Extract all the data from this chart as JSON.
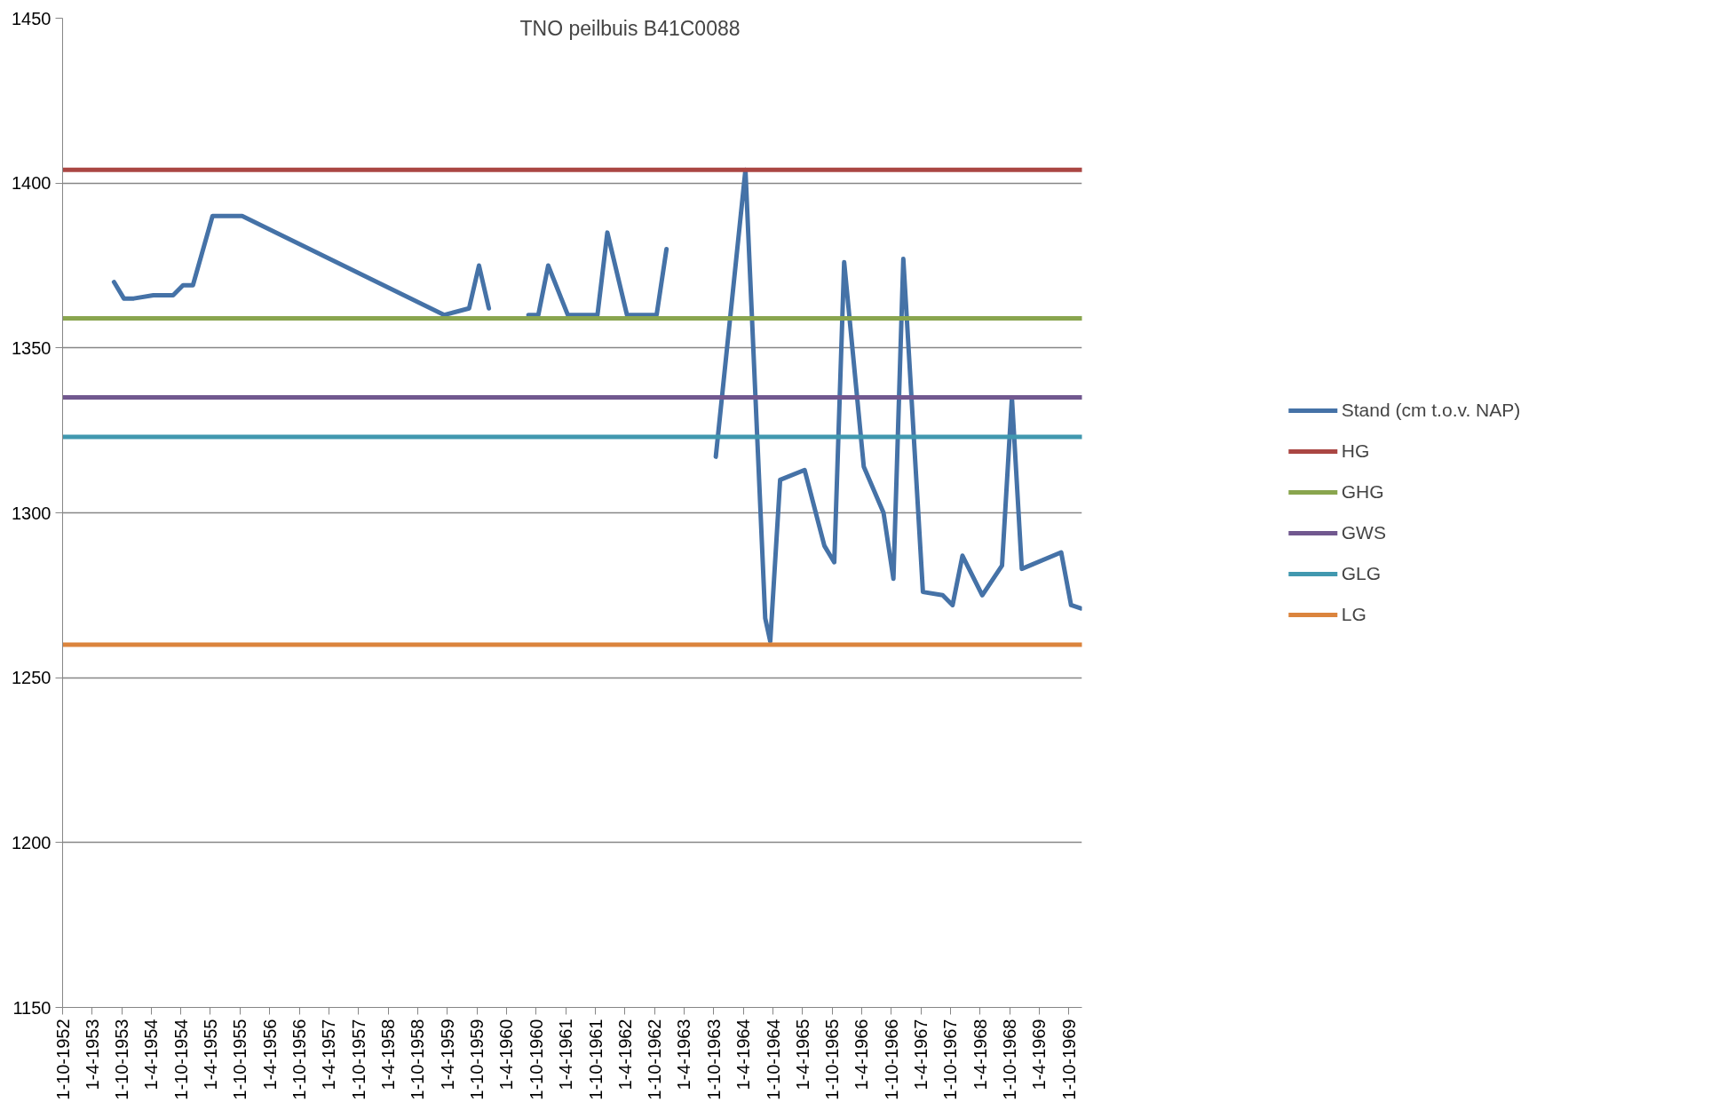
{
  "chart_data": {
    "type": "line",
    "title": "TNO peilbuis B41C0088",
    "xlim": [
      "1952-10-01",
      "1969-12-20"
    ],
    "ylim": [
      1150,
      1450
    ],
    "yticks": [
      1150,
      1200,
      1250,
      1300,
      1350,
      1400,
      1450
    ],
    "xticks": [
      {
        "value": "1952-10-01",
        "label": "1-10-1952"
      },
      {
        "value": "1953-04-01",
        "label": "1-4-1953"
      },
      {
        "value": "1953-10-01",
        "label": "1-10-1953"
      },
      {
        "value": "1954-04-01",
        "label": "1-4-1954"
      },
      {
        "value": "1954-10-01",
        "label": "1-10-1954"
      },
      {
        "value": "1955-04-01",
        "label": "1-4-1955"
      },
      {
        "value": "1955-10-01",
        "label": "1-10-1955"
      },
      {
        "value": "1956-04-01",
        "label": "1-4-1956"
      },
      {
        "value": "1956-10-01",
        "label": "1-10-1956"
      },
      {
        "value": "1957-04-01",
        "label": "1-4-1957"
      },
      {
        "value": "1957-10-01",
        "label": "1-10-1957"
      },
      {
        "value": "1958-04-01",
        "label": "1-4-1958"
      },
      {
        "value": "1958-10-01",
        "label": "1-10-1958"
      },
      {
        "value": "1959-04-01",
        "label": "1-4-1959"
      },
      {
        "value": "1959-10-01",
        "label": "1-10-1959"
      },
      {
        "value": "1960-04-01",
        "label": "1-4-1960"
      },
      {
        "value": "1960-10-01",
        "label": "1-10-1960"
      },
      {
        "value": "1961-04-01",
        "label": "1-4-1961"
      },
      {
        "value": "1961-10-01",
        "label": "1-10-1961"
      },
      {
        "value": "1962-04-01",
        "label": "1-4-1962"
      },
      {
        "value": "1962-10-01",
        "label": "1-10-1962"
      },
      {
        "value": "1963-04-01",
        "label": "1-4-1963"
      },
      {
        "value": "1963-10-01",
        "label": "1-10-1963"
      },
      {
        "value": "1964-04-01",
        "label": "1-4-1964"
      },
      {
        "value": "1964-10-01",
        "label": "1-10-1964"
      },
      {
        "value": "1965-04-01",
        "label": "1-4-1965"
      },
      {
        "value": "1965-10-01",
        "label": "1-10-1965"
      },
      {
        "value": "1966-04-01",
        "label": "1-4-1966"
      },
      {
        "value": "1966-10-01",
        "label": "1-10-1966"
      },
      {
        "value": "1967-04-01",
        "label": "1-4-1967"
      },
      {
        "value": "1967-10-01",
        "label": "1-10-1967"
      },
      {
        "value": "1968-04-01",
        "label": "1-4-1968"
      },
      {
        "value": "1968-10-01",
        "label": "1-10-1968"
      },
      {
        "value": "1969-04-01",
        "label": "1-4-1969"
      },
      {
        "value": "1969-10-01",
        "label": "1-10-1969"
      }
    ],
    "grid": "y",
    "legend": "right",
    "line_style": "solid",
    "marker": "none",
    "series": [
      {
        "name": "Stand (cm t.o.v. NAP)",
        "color": "#4572a7",
        "x": [
          "1953-08-14",
          "1953-10-14",
          "1953-12-14",
          "1954-04-14",
          "1954-08-14",
          "1954-10-14",
          "1954-12-14",
          "1955-04-14",
          "1955-10-14",
          "1959-03-14",
          "1959-08-14",
          "1959-10-14",
          "1959-12-14",
          "1960-04-14",
          "1960-08-14",
          "1960-10-14",
          "1960-12-14",
          "1961-04-14",
          "1961-10-14",
          "1961-12-14",
          "1962-04-14",
          "1962-10-14",
          "1962-12-14",
          "1963-04-14",
          "1963-10-14",
          "1964-04-14",
          "1964-08-14",
          "1964-09-14",
          "1964-11-14",
          "1965-04-14",
          "1965-08-14",
          "1965-10-14",
          "1965-12-14",
          "1966-04-14",
          "1966-08-14",
          "1966-10-14",
          "1966-12-14",
          "1967-04-14",
          "1967-08-14",
          "1967-10-14",
          "1967-12-14",
          "1968-04-14",
          "1968-08-14",
          "1968-10-14",
          "1968-12-14",
          "1969-08-14",
          "1969-10-14",
          "1969-12-14"
        ],
        "values": [
          1370,
          1365,
          1365,
          1366,
          1366,
          1369,
          1369,
          1390,
          1390,
          1360,
          1362,
          1375,
          1362,
          null,
          1360,
          1360,
          1375,
          1360,
          1360,
          1385,
          1360,
          1360,
          1380,
          null,
          1317,
          1404,
          1268,
          1261,
          1310,
          1313,
          1290,
          1285,
          1376,
          1314,
          1300,
          1280,
          1377,
          1276,
          1275,
          1272,
          1287,
          1275,
          1284,
          1335,
          1283,
          1288,
          1272,
          1271
        ]
      },
      {
        "name": "HG",
        "color": "#aa4643",
        "x": [
          "1952-10-01",
          "1969-12-20"
        ],
        "values": [
          1404,
          1404
        ]
      },
      {
        "name": "GHG",
        "color": "#89a54e",
        "x": [
          "1952-10-01",
          "1969-12-20"
        ],
        "values": [
          1359,
          1359
        ]
      },
      {
        "name": "GWS",
        "color": "#71588f",
        "x": [
          "1952-10-01",
          "1969-12-20"
        ],
        "values": [
          1335,
          1335
        ]
      },
      {
        "name": "GLG",
        "color": "#4198af",
        "x": [
          "1952-10-01",
          "1969-12-20"
        ],
        "values": [
          1323,
          1323
        ]
      },
      {
        "name": "LG",
        "color": "#db843d",
        "x": [
          "1952-10-01",
          "1969-12-20"
        ],
        "values": [
          1260,
          1260
        ]
      }
    ]
  }
}
